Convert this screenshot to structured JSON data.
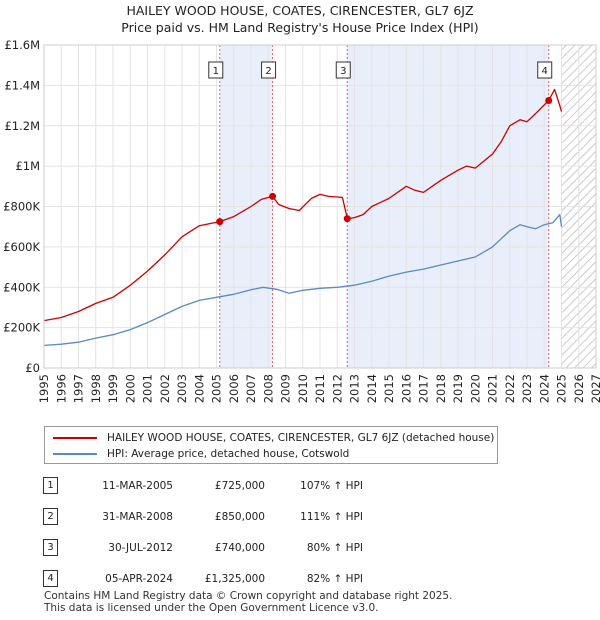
{
  "title_line1": "HAILEY WOOD HOUSE, COATES, CIRENCESTER, GL7 6JZ",
  "title_line2": "Price paid vs. HM Land Registry's House Price Index (HPI)",
  "colors": {
    "property": "#cc0000",
    "hpi": "#5b8ac4",
    "shade": "#e8eefa",
    "vline": "#e06666"
  },
  "chart_data": {
    "type": "line",
    "title": "Price paid vs. HM Land Registry's House Price Index (HPI)",
    "xlabel": "",
    "ylabel": "",
    "xlim": [
      1995,
      2027
    ],
    "ylim": [
      0,
      1600000
    ],
    "x_ticks": [
      "1995",
      "1996",
      "1997",
      "1998",
      "1999",
      "2000",
      "2001",
      "2002",
      "2003",
      "2004",
      "2005",
      "2006",
      "2007",
      "2008",
      "2009",
      "2010",
      "2011",
      "2012",
      "2013",
      "2014",
      "2015",
      "2016",
      "2017",
      "2018",
      "2019",
      "2020",
      "2021",
      "2022",
      "2023",
      "2024",
      "2025",
      "2026",
      "2027"
    ],
    "y_ticks": [
      {
        "value": 0,
        "label": "£0"
      },
      {
        "value": 200000,
        "label": "£200K"
      },
      {
        "value": 400000,
        "label": "£400K"
      },
      {
        "value": 600000,
        "label": "£600K"
      },
      {
        "value": 800000,
        "label": "£800K"
      },
      {
        "value": 1000000,
        "label": "£1M"
      },
      {
        "value": 1200000,
        "label": "£1.2M"
      },
      {
        "value": 1400000,
        "label": "£1.4M"
      },
      {
        "value": 1600000,
        "label": "£1.6M"
      }
    ],
    "shaded_periods": [
      [
        2005.19,
        2008.25
      ],
      [
        2012.58,
        2024.26
      ]
    ],
    "hatch_from": 2025.0,
    "series": [
      {
        "name": "HAILEY WOOD HOUSE, COATES, CIRENCESTER, GL7 6JZ (detached house)",
        "x": [
          1995.0,
          1996.0,
          1997.0,
          1998.0,
          1999.0,
          2000.0,
          2001.0,
          2002.0,
          2003.0,
          2004.0,
          2005.19,
          2006.0,
          2007.0,
          2007.6,
          2008.25,
          2008.6,
          2009.2,
          2009.8,
          2010.5,
          2011.0,
          2011.5,
          2012.3,
          2012.58,
          2013.0,
          2013.5,
          2014.0,
          2015.0,
          2016.0,
          2016.5,
          2017.0,
          2018.0,
          2019.0,
          2019.5,
          2020.0,
          2021.0,
          2021.5,
          2022.0,
          2022.6,
          2023.0,
          2023.5,
          2024.26,
          2024.6,
          2024.9,
          2025.0
        ],
        "values": [
          235000,
          250000,
          280000,
          320000,
          350000,
          410000,
          480000,
          560000,
          650000,
          705000,
          725000,
          750000,
          800000,
          835000,
          850000,
          810000,
          790000,
          780000,
          840000,
          860000,
          850000,
          845000,
          740000,
          745000,
          760000,
          800000,
          840000,
          900000,
          880000,
          870000,
          930000,
          980000,
          1000000,
          990000,
          1060000,
          1120000,
          1200000,
          1230000,
          1220000,
          1260000,
          1325000,
          1380000,
          1300000,
          1270000
        ]
      },
      {
        "name": "HPI: Average price, detached house, Cotswold",
        "x": [
          1995.0,
          1996.0,
          1997.0,
          1998.0,
          1999.0,
          2000.0,
          2001.0,
          2002.0,
          2003.0,
          2004.0,
          2005.0,
          2006.0,
          2007.0,
          2007.7,
          2008.5,
          2009.2,
          2010.0,
          2011.0,
          2012.0,
          2013.0,
          2014.0,
          2015.0,
          2016.0,
          2017.0,
          2018.0,
          2019.0,
          2020.0,
          2021.0,
          2021.5,
          2022.0,
          2022.6,
          2023.0,
          2023.5,
          2024.0,
          2024.5,
          2024.9,
          2025.0
        ],
        "values": [
          112000,
          118000,
          128000,
          148000,
          165000,
          190000,
          225000,
          265000,
          305000,
          335000,
          350000,
          365000,
          388000,
          400000,
          390000,
          370000,
          385000,
          395000,
          400000,
          410000,
          430000,
          455000,
          475000,
          490000,
          510000,
          530000,
          550000,
          600000,
          640000,
          680000,
          710000,
          700000,
          690000,
          710000,
          720000,
          760000,
          700000
        ]
      }
    ],
    "sales": [
      {
        "num": "1",
        "x": 2005.19,
        "value": 725000
      },
      {
        "num": "2",
        "x": 2008.25,
        "value": 850000
      },
      {
        "num": "3",
        "x": 2012.58,
        "value": 740000
      },
      {
        "num": "4",
        "x": 2024.26,
        "value": 1325000
      }
    ]
  },
  "legend": {
    "property": "HAILEY WOOD HOUSE, COATES, CIRENCESTER, GL7 6JZ (detached house)",
    "hpi": "HPI: Average price, detached house, Cotswold"
  },
  "transactions": [
    {
      "num": "1",
      "date": "11-MAR-2005",
      "price": "£725,000",
      "hpi": "107% ↑ HPI"
    },
    {
      "num": "2",
      "date": "31-MAR-2008",
      "price": "£850,000",
      "hpi": "111% ↑ HPI"
    },
    {
      "num": "3",
      "date": "30-JUL-2012",
      "price": "£740,000",
      "hpi": "80% ↑ HPI"
    },
    {
      "num": "4",
      "date": "05-APR-2024",
      "price": "£1,325,000",
      "hpi": "82% ↑ HPI"
    }
  ],
  "footer_line1": "Contains HM Land Registry data © Crown copyright and database right 2025.",
  "footer_line2": "This data is licensed under the Open Government Licence v3.0."
}
